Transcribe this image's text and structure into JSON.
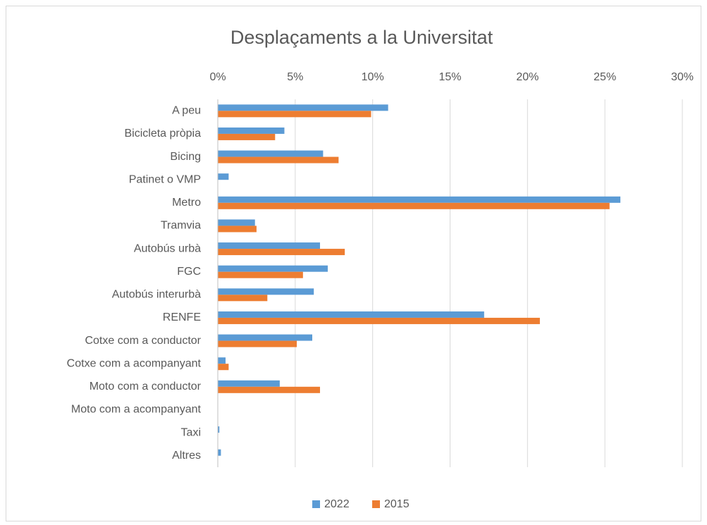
{
  "chart_data": {
    "type": "bar",
    "orientation": "horizontal",
    "title": "Desplaçaments a la Universitat",
    "categories": [
      "A peu",
      "Bicicleta pròpia",
      "Bicing",
      "Patinet o VMP",
      "Metro",
      "Tramvia",
      "Autobús urbà",
      "FGC",
      "Autobús interurbà",
      "RENFE",
      "Cotxe com a conductor",
      "Cotxe com a acompanyant",
      "Moto com a conductor",
      "Moto com a acompanyant",
      "Taxi",
      "Altres"
    ],
    "series": [
      {
        "name": "2022",
        "color": "#5b9bd5",
        "values": [
          11.0,
          4.3,
          6.8,
          0.7,
          26.0,
          2.4,
          6.6,
          7.1,
          6.2,
          17.2,
          6.1,
          0.5,
          4.0,
          0,
          0.1,
          0.2
        ]
      },
      {
        "name": "2015",
        "color": "#ed7d31",
        "values": [
          9.9,
          3.7,
          7.8,
          0,
          25.3,
          2.5,
          8.2,
          5.5,
          3.2,
          20.8,
          5.1,
          0.7,
          6.6,
          0,
          0,
          0
        ]
      }
    ],
    "xlim": [
      0,
      30
    ],
    "xticks": [
      {
        "value": 0,
        "label": "0%"
      },
      {
        "value": 5,
        "label": "5%"
      },
      {
        "value": 10,
        "label": "10%"
      },
      {
        "value": 15,
        "label": "15%"
      },
      {
        "value": 20,
        "label": "20%"
      },
      {
        "value": 25,
        "label": "25%"
      },
      {
        "value": 30,
        "label": "30%"
      }
    ],
    "grid": true,
    "legend": "bottom"
  }
}
